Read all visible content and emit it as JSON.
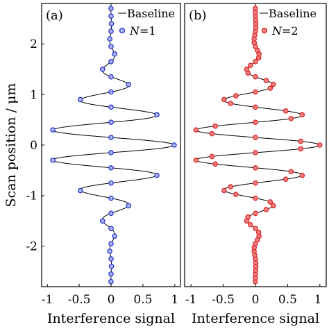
{
  "chart_data": [
    {
      "type": "line",
      "panel_label": "(a)",
      "xlabel": "Interference signal",
      "ylabel": "Scan position / μm",
      "xlim": [
        -1.1,
        1.1
      ],
      "ylim": [
        -2.8,
        2.8
      ],
      "xticks": [
        -1,
        -0.5,
        0,
        0.5,
        1
      ],
      "xtick_labels": [
        "-1",
        "-0.5",
        "0",
        "0.5",
        "1"
      ],
      "yticks": [
        -2,
        -1,
        0,
        1,
        2
      ],
      "ytick_labels": [
        "-2",
        "-1",
        "0",
        "1",
        "2"
      ],
      "grid": false,
      "legend_position": "top-right",
      "series": [
        {
          "name": "Baseline",
          "style": "line",
          "color": "#000000",
          "model": {
            "amplitude": 1.0,
            "period_um": 0.6,
            "envelope_sigma_um": 0.75,
            "y_range": [
              -2.8,
              2.8
            ]
          }
        },
        {
          "name": "N=1",
          "name_italic": "N",
          "name_rest": "=1",
          "style": "markers",
          "color": "#2233cc",
          "y_start": -2.7,
          "y_step": 0.15,
          "count": 37
        }
      ]
    },
    {
      "type": "line",
      "panel_label": "(b)",
      "xlabel": "Interference signal",
      "xlim": [
        -1.1,
        1.1
      ],
      "ylim": [
        -2.8,
        2.8
      ],
      "xticks": [
        -1,
        -0.5,
        0,
        0.5,
        1
      ],
      "xtick_labels": [
        "-1",
        "-0.5",
        "0",
        "0.5",
        "1"
      ],
      "grid": false,
      "legend_position": "top-right",
      "series": [
        {
          "name": "Baseline",
          "style": "line",
          "color": "#000000",
          "model": {
            "amplitude": 1.0,
            "period_um": 0.6,
            "envelope_sigma_um": 0.75,
            "y_range": [
              -2.8,
              2.8
            ]
          }
        },
        {
          "name": "N=2",
          "name_italic": "N",
          "name_rest": "=2",
          "style": "markers",
          "color": "#dd2222",
          "y_start": -2.7,
          "y_step": 0.075,
          "count": 73
        }
      ]
    }
  ]
}
